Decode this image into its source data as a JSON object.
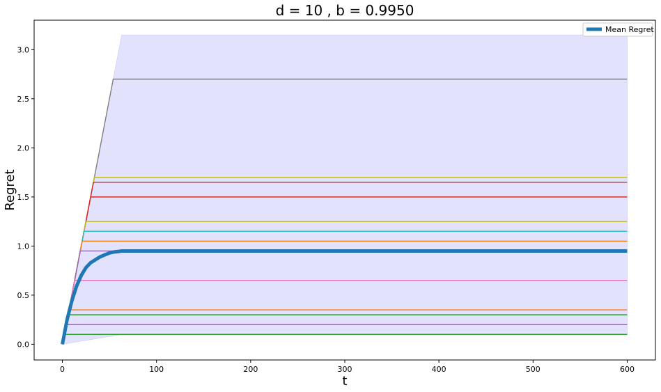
{
  "chart_data": {
    "type": "line",
    "title": "d = 10 , b = 0.9950",
    "xlabel": "t",
    "ylabel": "Regret",
    "xlim": [
      -30,
      630
    ],
    "ylim": [
      -0.16,
      3.3
    ],
    "xticks": [
      0,
      100,
      200,
      300,
      400,
      500,
      600
    ],
    "yticks": [
      0.0,
      0.5,
      1.0,
      1.5,
      2.0,
      2.5,
      3.0
    ],
    "xtick_labels": [
      "0",
      "100",
      "200",
      "300",
      "400",
      "500",
      "600"
    ],
    "ytick_labels": [
      "0.0",
      "0.5",
      "1.0",
      "1.5",
      "2.0",
      "2.5",
      "3.0"
    ],
    "grid": false,
    "legend_position": "top-right",
    "legend": [
      "Mean Regret"
    ],
    "band": {
      "color": "#e2e2fd",
      "x": [
        0,
        63,
        600
      ],
      "lower": [
        0,
        0.1,
        0.1
      ],
      "upper": [
        0,
        3.15,
        3.15
      ]
    },
    "runs": [
      {
        "color": "#7f7f7f",
        "plateau": 2.7,
        "t_end": 54
      },
      {
        "color": "#bcbd22",
        "plateau": 1.7,
        "t_end": 34
      },
      {
        "color": "#d62728",
        "plateau": 1.65,
        "t_end": 33
      },
      {
        "color": "#d62728",
        "plateau": 1.5,
        "t_end": 30
      },
      {
        "color": "#bcbd22",
        "plateau": 1.25,
        "t_end": 25
      },
      {
        "color": "#17becf",
        "plateau": 1.15,
        "t_end": 23
      },
      {
        "color": "#ff7f0e",
        "plateau": 1.05,
        "t_end": 21
      },
      {
        "color": "#9467bd",
        "plateau": 0.95,
        "t_end": 19
      },
      {
        "color": "#e377c2",
        "plateau": 0.65,
        "t_end": 13
      },
      {
        "color": "#ff7f0e",
        "plateau": 0.35,
        "t_end": 7
      },
      {
        "color": "#2ca02c",
        "plateau": 0.3,
        "t_end": 6
      },
      {
        "color": "#8c564b",
        "plateau": 0.2,
        "t_end": 4
      },
      {
        "color": "#9467bd",
        "plateau": 0.2,
        "t_end": 4
      },
      {
        "color": "#17becf",
        "plateau": 0.1,
        "t_end": 2
      },
      {
        "color": "#2ca02c",
        "plateau": 0.1,
        "t_end": 2
      }
    ],
    "series": [
      {
        "name": "Mean Regret",
        "color": "#1f77b4",
        "x": [
          0,
          2,
          5,
          10,
          15,
          20,
          25,
          30,
          35,
          40,
          45,
          50,
          55,
          60,
          63,
          100,
          200,
          300,
          400,
          500,
          600
        ],
        "y": [
          0.0,
          0.1,
          0.25,
          0.44,
          0.59,
          0.7,
          0.78,
          0.83,
          0.86,
          0.89,
          0.91,
          0.93,
          0.94,
          0.945,
          0.95,
          0.95,
          0.95,
          0.95,
          0.95,
          0.95,
          0.95
        ]
      }
    ]
  }
}
